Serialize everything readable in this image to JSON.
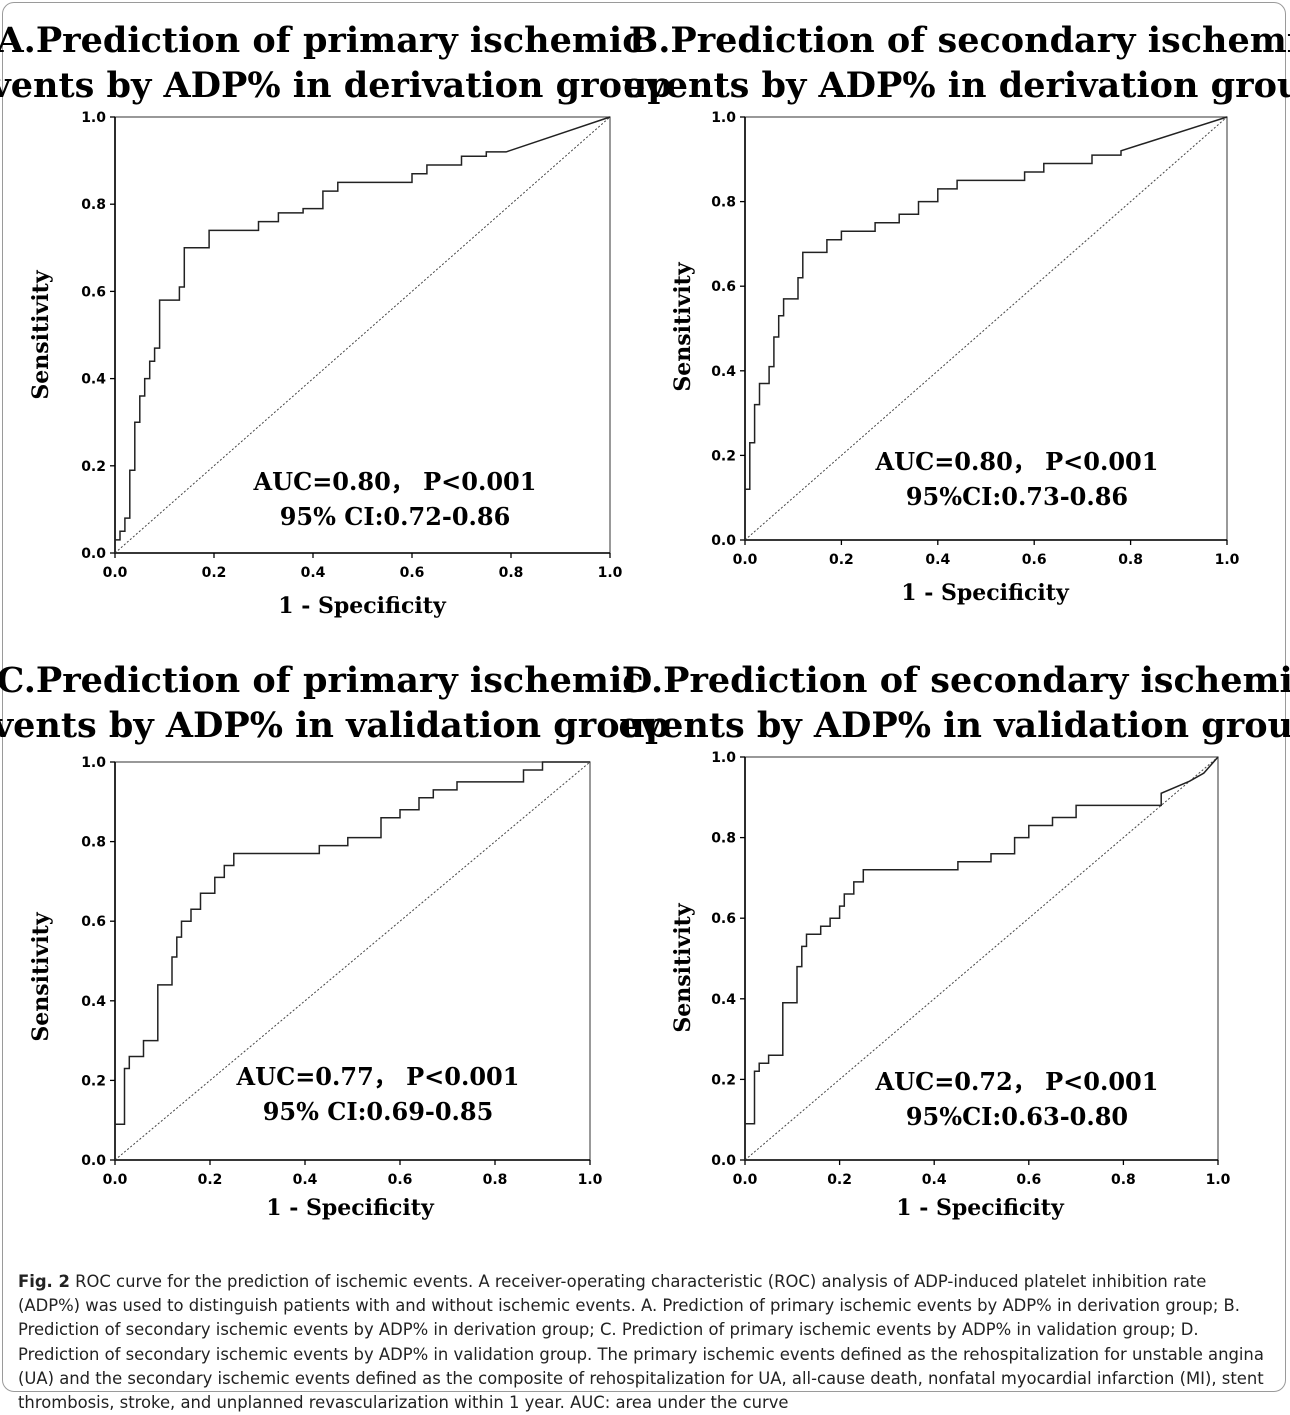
{
  "figure": {
    "caption_label": "Fig. 2",
    "caption_text": "ROC curve for the prediction of ischemic events. A receiver-operating characteristic (ROC) analysis of ADP-induced platelet inhibition rate (ADP%) was used to distinguish patients with and without ischemic events. A. Prediction of primary ischemic events by ADP% in derivation group; B. Prediction of secondary ischemic events by ADP% in derivation group; C. Prediction of primary ischemic events by ADP% in validation group; D. Prediction of secondary ischemic events by ADP% in validation group. The primary ischemic events defined as the rehospitalization for unstable angina (UA) and the secondary ischemic events defined as the composite of rehospitalization for UA, all-cause death, nonfatal myocardial infarction (MI), stent thrombosis, stroke, and unplanned revascularization within 1 year. AUC: area under the curve"
  },
  "chart_data": [
    {
      "type": "line",
      "title_lines": [
        "A.Prediction of primary ischemic",
        "events by ADP% in derivation group"
      ],
      "xlabel": "1 - Specificity",
      "ylabel": "Sensitivity",
      "xlim": [
        0,
        1
      ],
      "ylim": [
        0,
        1
      ],
      "xticks": [
        "0.0",
        "0.2",
        "0.4",
        "0.6",
        "0.8",
        "1.0"
      ],
      "yticks": [
        "0.0",
        "0.2",
        "0.4",
        "0.6",
        "0.8",
        "1.0"
      ],
      "annotation": [
        "AUC=0.80，  P<0.001",
        "95% CI:0.72-0.86"
      ],
      "reference_line": [
        [
          0,
          0
        ],
        [
          1,
          1
        ]
      ],
      "series": [
        {
          "values": [
            [
              0,
              0
            ],
            [
              0,
              0.03
            ],
            [
              0.01,
              0.03
            ],
            [
              0.01,
              0.05
            ],
            [
              0.02,
              0.05
            ],
            [
              0.02,
              0.08
            ],
            [
              0.03,
              0.08
            ],
            [
              0.03,
              0.19
            ],
            [
              0.04,
              0.19
            ],
            [
              0.04,
              0.3
            ],
            [
              0.05,
              0.3
            ],
            [
              0.05,
              0.36
            ],
            [
              0.06,
              0.36
            ],
            [
              0.06,
              0.4
            ],
            [
              0.07,
              0.4
            ],
            [
              0.07,
              0.44
            ],
            [
              0.08,
              0.44
            ],
            [
              0.08,
              0.47
            ],
            [
              0.09,
              0.47
            ],
            [
              0.09,
              0.58
            ],
            [
              0.13,
              0.58
            ],
            [
              0.13,
              0.61
            ],
            [
              0.14,
              0.61
            ],
            [
              0.14,
              0.7
            ],
            [
              0.19,
              0.7
            ],
            [
              0.19,
              0.74
            ],
            [
              0.29,
              0.74
            ],
            [
              0.29,
              0.76
            ],
            [
              0.33,
              0.76
            ],
            [
              0.33,
              0.78
            ],
            [
              0.38,
              0.78
            ],
            [
              0.38,
              0.79
            ],
            [
              0.42,
              0.79
            ],
            [
              0.42,
              0.83
            ],
            [
              0.45,
              0.83
            ],
            [
              0.45,
              0.85
            ],
            [
              0.6,
              0.85
            ],
            [
              0.6,
              0.87
            ],
            [
              0.63,
              0.87
            ],
            [
              0.63,
              0.89
            ],
            [
              0.7,
              0.89
            ],
            [
              0.7,
              0.91
            ],
            [
              0.75,
              0.91
            ],
            [
              0.75,
              0.92
            ],
            [
              0.79,
              0.92
            ],
            [
              1,
              1
            ]
          ]
        }
      ]
    },
    {
      "type": "line",
      "title_lines": [
        "B.Prediction of secondary ischemic",
        "events by ADP% in derivation group"
      ],
      "xlabel": "1 - Specificity",
      "ylabel": "Sensitivity",
      "xlim": [
        0,
        1
      ],
      "ylim": [
        0,
        1
      ],
      "xticks": [
        "0.0",
        "0.2",
        "0.4",
        "0.6",
        "0.8",
        "1.0"
      ],
      "yticks": [
        "0.0",
        "0.2",
        "0.4",
        "0.6",
        "0.8",
        "1.0"
      ],
      "annotation": [
        "AUC=0.80，  P<0.001",
        "95%CI:0.73-0.86"
      ],
      "reference_line": [
        [
          0,
          0
        ],
        [
          1,
          1
        ]
      ],
      "series": [
        {
          "values": [
            [
              0,
              0
            ],
            [
              0,
              0.12
            ],
            [
              0.01,
              0.12
            ],
            [
              0.01,
              0.23
            ],
            [
              0.02,
              0.23
            ],
            [
              0.02,
              0.32
            ],
            [
              0.03,
              0.32
            ],
            [
              0.03,
              0.37
            ],
            [
              0.05,
              0.37
            ],
            [
              0.05,
              0.41
            ],
            [
              0.06,
              0.41
            ],
            [
              0.06,
              0.48
            ],
            [
              0.07,
              0.48
            ],
            [
              0.07,
              0.53
            ],
            [
              0.08,
              0.53
            ],
            [
              0.08,
              0.57
            ],
            [
              0.11,
              0.57
            ],
            [
              0.11,
              0.62
            ],
            [
              0.12,
              0.62
            ],
            [
              0.12,
              0.68
            ],
            [
              0.17,
              0.68
            ],
            [
              0.17,
              0.71
            ],
            [
              0.2,
              0.71
            ],
            [
              0.2,
              0.73
            ],
            [
              0.27,
              0.73
            ],
            [
              0.27,
              0.75
            ],
            [
              0.32,
              0.75
            ],
            [
              0.32,
              0.77
            ],
            [
              0.36,
              0.77
            ],
            [
              0.36,
              0.8
            ],
            [
              0.4,
              0.8
            ],
            [
              0.4,
              0.83
            ],
            [
              0.44,
              0.83
            ],
            [
              0.44,
              0.85
            ],
            [
              0.58,
              0.85
            ],
            [
              0.58,
              0.87
            ],
            [
              0.62,
              0.87
            ],
            [
              0.62,
              0.89
            ],
            [
              0.72,
              0.89
            ],
            [
              0.72,
              0.91
            ],
            [
              0.78,
              0.91
            ],
            [
              0.78,
              0.92
            ],
            [
              1,
              1
            ]
          ]
        }
      ]
    },
    {
      "type": "line",
      "title_lines": [
        "C.Prediction of primary ischemic",
        "events by ADP% in validation group"
      ],
      "xlabel": "1 - Specificity",
      "ylabel": "Sensitivity",
      "xlim": [
        0,
        1
      ],
      "ylim": [
        0,
        1
      ],
      "xticks": [
        "0.0",
        "0.2",
        "0.4",
        "0.6",
        "0.8",
        "1.0"
      ],
      "yticks": [
        "0.0",
        "0.2",
        "0.4",
        "0.6",
        "0.8",
        "1.0"
      ],
      "annotation": [
        "AUC=0.77，  P<0.001",
        "95% CI:0.69-0.85"
      ],
      "reference_line": [
        [
          0,
          0
        ],
        [
          1,
          1
        ]
      ],
      "series": [
        {
          "values": [
            [
              0,
              0
            ],
            [
              0,
              0.09
            ],
            [
              0.02,
              0.09
            ],
            [
              0.02,
              0.23
            ],
            [
              0.03,
              0.23
            ],
            [
              0.03,
              0.26
            ],
            [
              0.06,
              0.26
            ],
            [
              0.06,
              0.3
            ],
            [
              0.09,
              0.3
            ],
            [
              0.09,
              0.44
            ],
            [
              0.12,
              0.44
            ],
            [
              0.12,
              0.51
            ],
            [
              0.13,
              0.51
            ],
            [
              0.13,
              0.56
            ],
            [
              0.14,
              0.56
            ],
            [
              0.14,
              0.6
            ],
            [
              0.16,
              0.6
            ],
            [
              0.16,
              0.63
            ],
            [
              0.18,
              0.63
            ],
            [
              0.18,
              0.67
            ],
            [
              0.21,
              0.67
            ],
            [
              0.21,
              0.71
            ],
            [
              0.23,
              0.71
            ],
            [
              0.23,
              0.74
            ],
            [
              0.25,
              0.74
            ],
            [
              0.25,
              0.77
            ],
            [
              0.43,
              0.77
            ],
            [
              0.43,
              0.79
            ],
            [
              0.49,
              0.79
            ],
            [
              0.49,
              0.81
            ],
            [
              0.56,
              0.81
            ],
            [
              0.56,
              0.86
            ],
            [
              0.6,
              0.86
            ],
            [
              0.6,
              0.88
            ],
            [
              0.64,
              0.88
            ],
            [
              0.64,
              0.91
            ],
            [
              0.67,
              0.91
            ],
            [
              0.67,
              0.93
            ],
            [
              0.72,
              0.93
            ],
            [
              0.72,
              0.95
            ],
            [
              0.86,
              0.95
            ],
            [
              0.86,
              0.98
            ],
            [
              0.9,
              0.98
            ],
            [
              0.9,
              1
            ],
            [
              1,
              1
            ]
          ]
        }
      ]
    },
    {
      "type": "line",
      "title_lines": [
        "D.Prediction of secondary ischemic",
        "events by ADP% in validation group"
      ],
      "xlabel": "1 - Specificity",
      "ylabel": "Sensitivity",
      "xlim": [
        0,
        1
      ],
      "ylim": [
        0,
        1
      ],
      "xticks": [
        "0.0",
        "0.2",
        "0.4",
        "0.6",
        "0.8",
        "1.0"
      ],
      "yticks": [
        "0.0",
        "0.2",
        "0.4",
        "0.6",
        "0.8",
        "1.0"
      ],
      "annotation": [
        "AUC=0.72，  P<0.001",
        "95%CI:0.63-0.80"
      ],
      "reference_line": [
        [
          0,
          0
        ],
        [
          1,
          1
        ]
      ],
      "series": [
        {
          "values": [
            [
              0,
              0
            ],
            [
              0,
              0.09
            ],
            [
              0.02,
              0.09
            ],
            [
              0.02,
              0.22
            ],
            [
              0.03,
              0.22
            ],
            [
              0.03,
              0.24
            ],
            [
              0.05,
              0.24
            ],
            [
              0.05,
              0.26
            ],
            [
              0.08,
              0.26
            ],
            [
              0.08,
              0.39
            ],
            [
              0.11,
              0.39
            ],
            [
              0.11,
              0.48
            ],
            [
              0.12,
              0.48
            ],
            [
              0.12,
              0.53
            ],
            [
              0.13,
              0.53
            ],
            [
              0.13,
              0.56
            ],
            [
              0.16,
              0.56
            ],
            [
              0.16,
              0.58
            ],
            [
              0.18,
              0.58
            ],
            [
              0.18,
              0.6
            ],
            [
              0.2,
              0.6
            ],
            [
              0.2,
              0.63
            ],
            [
              0.21,
              0.63
            ],
            [
              0.21,
              0.66
            ],
            [
              0.23,
              0.66
            ],
            [
              0.23,
              0.69
            ],
            [
              0.25,
              0.69
            ],
            [
              0.25,
              0.72
            ],
            [
              0.45,
              0.72
            ],
            [
              0.45,
              0.74
            ],
            [
              0.52,
              0.74
            ],
            [
              0.52,
              0.76
            ],
            [
              0.57,
              0.76
            ],
            [
              0.57,
              0.8
            ],
            [
              0.6,
              0.8
            ],
            [
              0.6,
              0.83
            ],
            [
              0.65,
              0.83
            ],
            [
              0.65,
              0.85
            ],
            [
              0.7,
              0.85
            ],
            [
              0.7,
              0.88
            ],
            [
              0.88,
              0.88
            ],
            [
              0.88,
              0.91
            ],
            [
              0.94,
              0.94
            ],
            [
              0.97,
              0.96
            ],
            [
              1,
              1
            ]
          ]
        }
      ]
    }
  ]
}
